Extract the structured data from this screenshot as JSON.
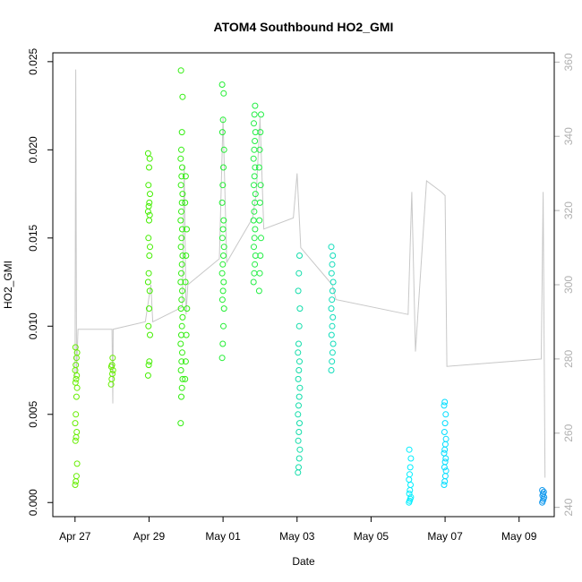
{
  "chart_data": {
    "type": "scatter",
    "title": "ATOM4 Southbound HO2_GMI",
    "xlabel": "Date",
    "ylabel": "HO2_GMI",
    "y2label": "",
    "x_ticks": [
      "Apr 27",
      "Apr 29",
      "May 01",
      "May 03",
      "May 05",
      "May 07",
      "May 09"
    ],
    "y_ticks": [
      "0.000",
      "0.005",
      "0.010",
      "0.015",
      "0.020",
      "0.025"
    ],
    "y2_ticks": [
      "240",
      "260",
      "280",
      "300",
      "320",
      "340",
      "360"
    ],
    "xlim_days": [
      -0.6,
      12.95
    ],
    "ylim": [
      -0.0008,
      0.0255
    ],
    "y2lim": [
      237.5,
      362.5
    ],
    "x_axis_note": "x values are days after Apr 27 00:00",
    "series": [
      {
        "name": "HO2_GMI",
        "kind": "points",
        "clusters": [
          {
            "x": 0.03,
            "color": "#66ee00",
            "values": [
              0.001,
              0.0012,
              0.0015,
              0.0022,
              0.0035,
              0.0037,
              0.004,
              0.0045,
              0.005,
              0.006,
              0.0065,
              0.0068,
              0.007,
              0.0072,
              0.0075,
              0.0078,
              0.0082,
              0.0085,
              0.0088
            ]
          },
          {
            "x": 1.0,
            "color": "#66ee00",
            "values": [
              0.0067,
              0.007,
              0.0073,
              0.0075,
              0.0077,
              0.0078,
              0.0082
            ]
          },
          {
            "x": 2.0,
            "color": "#44ee00",
            "values": [
              0.0072,
              0.0078,
              0.008,
              0.0095,
              0.01,
              0.011,
              0.012,
              0.0125,
              0.013,
              0.014,
              0.0145,
              0.015,
              0.016,
              0.0163,
              0.0165,
              0.0168,
              0.017,
              0.0175,
              0.018,
              0.019,
              0.0195,
              0.0198
            ]
          },
          {
            "x": 2.88,
            "color": "#33ee11",
            "values": [
              0.0045,
              0.006,
              0.0065,
              0.007,
              0.0075,
              0.008,
              0.0085,
              0.009,
              0.0095,
              0.01,
              0.0105,
              0.011,
              0.0115,
              0.012,
              0.0125,
              0.013,
              0.0135,
              0.014,
              0.0145,
              0.015,
              0.0155,
              0.016,
              0.0165,
              0.017,
              0.0175,
              0.018,
              0.0185,
              0.019,
              0.0195,
              0.02,
              0.021,
              0.023,
              0.0245
            ]
          },
          {
            "x": 3.0,
            "color": "#33ee11",
            "values": [
              0.007,
              0.008,
              0.0095,
              0.011,
              0.0125,
              0.014,
              0.0155,
              0.017,
              0.0185
            ]
          },
          {
            "x": 4.0,
            "color": "#22ee33",
            "values": [
              0.0082,
              0.009,
              0.01,
              0.011,
              0.0115,
              0.012,
              0.0125,
              0.013,
              0.0135,
              0.014,
              0.0145,
              0.015,
              0.0155,
              0.016,
              0.017,
              0.018,
              0.019,
              0.02,
              0.021,
              0.0217,
              0.0232,
              0.0237
            ]
          },
          {
            "x": 4.85,
            "color": "#22ee44",
            "values": [
              0.0125,
              0.013,
              0.0135,
              0.014,
              0.0145,
              0.015,
              0.0155,
              0.016,
              0.0165,
              0.017,
              0.0175,
              0.018,
              0.0185,
              0.019,
              0.0195,
              0.02,
              0.0205,
              0.021,
              0.0215,
              0.022,
              0.0225
            ]
          },
          {
            "x": 5.0,
            "color": "#22ee44",
            "values": [
              0.012,
              0.013,
              0.014,
              0.015,
              0.016,
              0.017,
              0.018,
              0.019,
              0.02,
              0.021,
              0.022
            ]
          },
          {
            "x": 6.05,
            "color": "#11ddaa",
            "values": [
              0.0017,
              0.002,
              0.0025,
              0.003,
              0.0035,
              0.004,
              0.0045,
              0.005,
              0.0055,
              0.006,
              0.0065,
              0.007,
              0.0075,
              0.008,
              0.0085,
              0.009,
              0.01,
              0.011,
              0.012,
              0.013,
              0.014
            ]
          },
          {
            "x": 6.95,
            "color": "#11ddbb",
            "values": [
              0.0075,
              0.008,
              0.0085,
              0.009,
              0.0095,
              0.01,
              0.0105,
              0.011,
              0.0115,
              0.012,
              0.0125,
              0.013,
              0.0135,
              0.014,
              0.0145
            ]
          },
          {
            "x": 9.05,
            "color": "#00eeff",
            "values": [
              0.0,
              0.0001,
              0.0002,
              0.0003,
              0.0005,
              0.0007,
              0.001,
              0.0013,
              0.0016,
              0.002,
              0.0025,
              0.003
            ]
          },
          {
            "x": 10.0,
            "color": "#00ddff",
            "values": [
              0.001,
              0.0012,
              0.0015,
              0.0018,
              0.002,
              0.0023,
              0.0025,
              0.0028,
              0.003,
              0.0033,
              0.0036,
              0.004,
              0.0045,
              0.005,
              0.0055,
              0.0057
            ]
          },
          {
            "x": 12.65,
            "color": "#1199ee",
            "values": [
              0.0,
              0.0001,
              0.0002,
              0.0003,
              0.0004,
              0.0005,
              0.0006,
              0.0007
            ]
          }
        ]
      },
      {
        "name": "right-axis trace",
        "kind": "line",
        "color": "#c8c8c8",
        "points": [
          [
            0.0,
            275
          ],
          [
            0.02,
            358
          ],
          [
            0.04,
            276
          ],
          [
            0.08,
            288
          ],
          [
            1.0,
            288
          ],
          [
            1.02,
            268
          ],
          [
            1.03,
            288
          ],
          [
            1.9,
            290
          ],
          [
            2.05,
            300
          ],
          [
            2.1,
            290
          ],
          [
            2.9,
            294
          ],
          [
            2.95,
            332
          ],
          [
            3.0,
            292
          ],
          [
            3.05,
            300
          ],
          [
            3.9,
            307
          ],
          [
            4.0,
            345
          ],
          [
            4.1,
            306
          ],
          [
            4.8,
            318
          ],
          [
            4.9,
            325
          ],
          [
            5.0,
            345
          ],
          [
            5.1,
            315
          ],
          [
            5.9,
            318
          ],
          [
            6.0,
            330
          ],
          [
            6.1,
            310
          ],
          [
            6.95,
            300
          ],
          [
            7.05,
            296
          ],
          [
            9.0,
            292
          ],
          [
            9.1,
            325
          ],
          [
            9.2,
            282
          ],
          [
            9.5,
            328
          ],
          [
            9.9,
            325
          ],
          [
            10.0,
            324
          ],
          [
            10.05,
            278
          ],
          [
            12.6,
            280
          ],
          [
            12.65,
            325
          ],
          [
            12.7,
            248
          ]
        ]
      }
    ]
  }
}
